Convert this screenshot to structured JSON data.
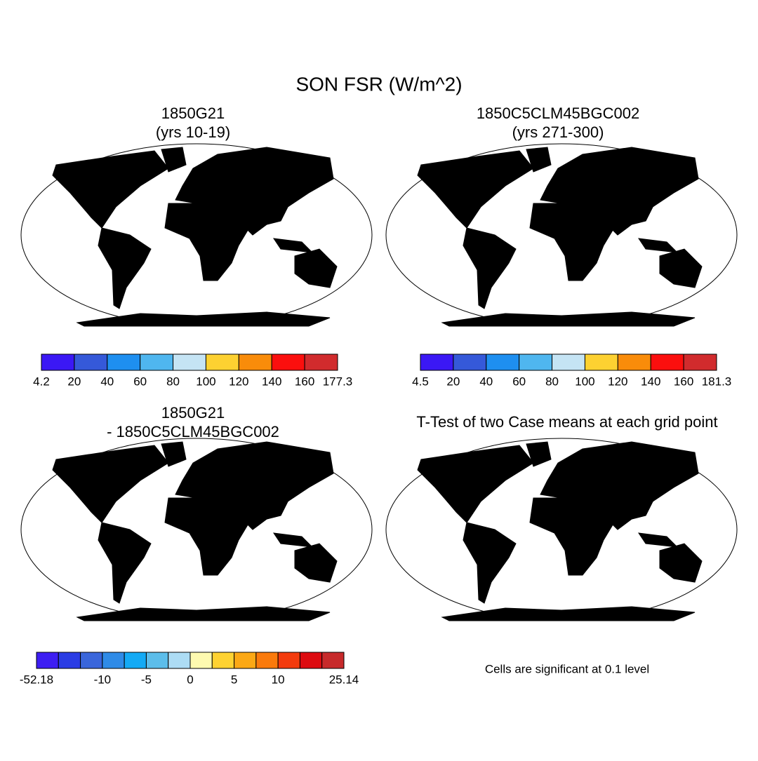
{
  "title": "SON FSR (W/m^2)",
  "panels": [
    {
      "title": [
        "1850G21",
        "(yrs 10-19)"
      ],
      "colorbar": {
        "colors": [
          "#3b18f5",
          "#3559d9",
          "#1e8ff0",
          "#4fb6ef",
          "#c5e4f4",
          "#fdd131",
          "#f98c0a",
          "#fb0f0e",
          "#d12b2d"
        ],
        "labels": [
          4.2,
          20,
          40,
          60,
          80,
          100,
          120,
          140,
          160,
          177.3
        ]
      }
    },
    {
      "title": [
        "1850C5CLM45BGC002",
        "(yrs 271-300)"
      ],
      "colorbar": {
        "colors": [
          "#3b18f5",
          "#3559d9",
          "#1e8ff0",
          "#4fb6ef",
          "#c5e4f4",
          "#fdd131",
          "#f98c0a",
          "#fb0f0e",
          "#d12b2d"
        ],
        "labels": [
          4.5,
          20,
          40,
          60,
          80,
          100,
          120,
          140,
          160,
          181.3
        ]
      }
    },
    {
      "title": [
        "1850G21",
        "- 1850C5CLM45BGC002"
      ],
      "colorbar": {
        "colors": [
          "#3d1ef2",
          "#2a3ce4",
          "#3a66db",
          "#2f8be7",
          "#14aaf5",
          "#5cbdea",
          "#addcf4",
          "#fefab0",
          "#fed232",
          "#fba815",
          "#fa7a0c",
          "#f33b0d",
          "#dd0b10",
          "#c72a2b"
        ],
        "labels": [
          -52.18,
          null,
          null,
          -10,
          null,
          -5,
          null,
          0,
          null,
          5,
          null,
          10,
          null,
          null,
          25.14
        ]
      }
    },
    {
      "title": [
        "T-Test of two Case means at each grid point"
      ],
      "note": "Cells are significant at 0.1 level"
    }
  ]
}
